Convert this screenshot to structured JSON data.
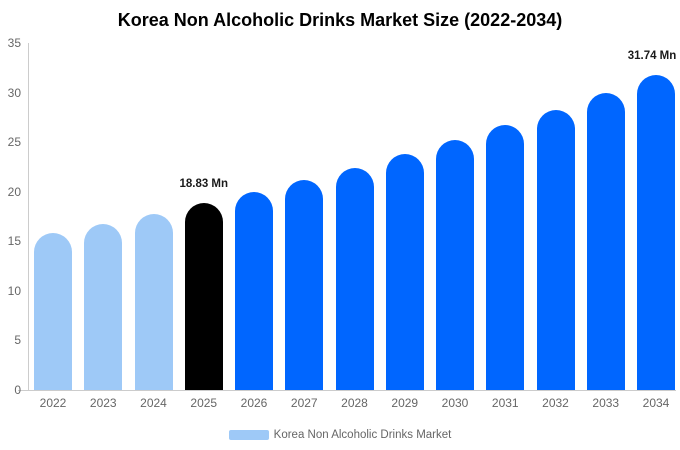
{
  "title": "Korea Non Alcoholic Drinks Market Size (2022-2034)",
  "chart_data": {
    "type": "bar",
    "categories": [
      "2022",
      "2023",
      "2024",
      "2025",
      "2026",
      "2027",
      "2028",
      "2029",
      "2030",
      "2031",
      "2032",
      "2033",
      "2034"
    ],
    "values": [
      15.82,
      16.77,
      17.77,
      18.83,
      19.96,
      21.15,
      22.42,
      23.76,
      25.18,
      26.69,
      28.28,
      29.98,
      31.74
    ],
    "unit": "Mn",
    "title": "Korea Non Alcoholic Drinks Market Size (2022-2034)",
    "xlabel": "",
    "ylabel": "",
    "ylim": [
      0,
      35
    ],
    "yticks": [
      0,
      5,
      10,
      15,
      20,
      25,
      30,
      35
    ],
    "grid": false,
    "bar_color_keys": [
      "light",
      "light",
      "light",
      "highlight",
      "primary",
      "primary",
      "primary",
      "primary",
      "primary",
      "primary",
      "primary",
      "primary",
      "primary"
    ],
    "palette": {
      "light": "#9ec9f7",
      "highlight": "#000000",
      "primary": "#0066ff"
    },
    "annotations": [
      {
        "category": "2025",
        "text": "18.83 Mn"
      },
      {
        "category": "2034",
        "text": "31.74 Mn"
      }
    ],
    "legend": {
      "position": "bottom",
      "label": "Korea Non Alcoholic Drinks Market",
      "swatch_color": "#9ec9f7"
    }
  },
  "colors": {
    "background": "#ffffff",
    "title_text": "#000000",
    "axis_text": "#666666",
    "annotation_text": "#1a1a1a",
    "axis_line": "#cccccc",
    "legend_text": "#666666"
  }
}
